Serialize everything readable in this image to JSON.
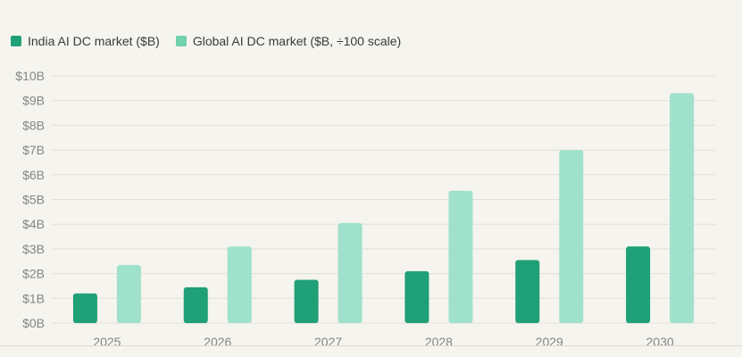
{
  "legend": {
    "india_label": "India AI DC market ($B)",
    "global_label": "Global AI DC market ($B, ÷100 scale)"
  },
  "colors": {
    "india": "#20a077",
    "global": "#a0e1cb",
    "global_swatch": "#6fd1ad",
    "grid": "#e2e0d8",
    "tick_text": "#858585"
  },
  "chart_data": {
    "type": "bar",
    "categories": [
      "2025",
      "2026",
      "2027",
      "2028",
      "2029",
      "2030"
    ],
    "series": [
      {
        "name": "India AI DC market ($B)",
        "values": [
          1.2,
          1.45,
          1.75,
          2.1,
          2.55,
          3.1
        ]
      },
      {
        "name": "Global AI DC market ($B, ÷100 scale)",
        "values": [
          2.35,
          3.1,
          4.05,
          5.35,
          7.0,
          9.3
        ]
      }
    ],
    "ylim": [
      0,
      10
    ],
    "yticks": [
      "$0B",
      "$1B",
      "$2B",
      "$3B",
      "$4B",
      "$5B",
      "$6B",
      "$7B",
      "$8B",
      "$9B",
      "$10B"
    ],
    "grid": true,
    "legend_position": "top-left"
  }
}
